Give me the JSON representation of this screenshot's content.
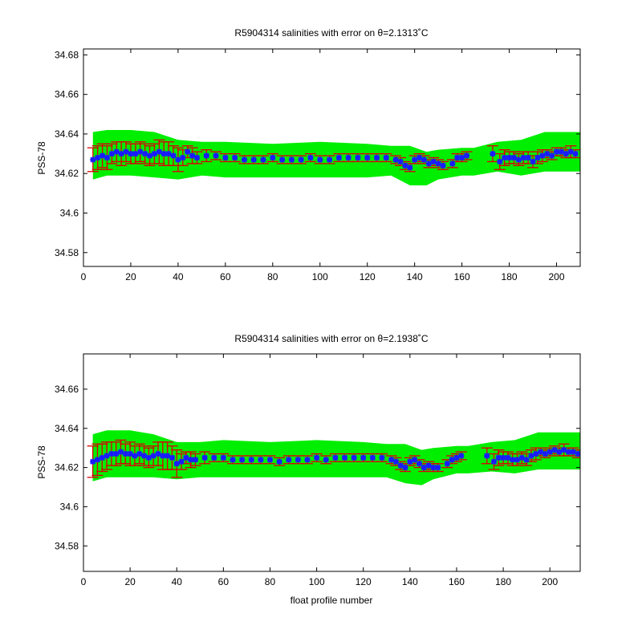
{
  "colors": {
    "band": "#00ee00",
    "errorbar": "#dd0000",
    "marker": "#1a1aff",
    "axes": "#000000"
  },
  "xlabel": "float profile number",
  "chart_data": [
    {
      "type": "scatter",
      "title": "R5904314 salinities with error on θ=2.1313˚C",
      "ylabel": "PSS-78",
      "xlim": [
        0,
        210
      ],
      "ylim": [
        34.573,
        34.683
      ],
      "xticks": [
        0,
        20,
        40,
        60,
        80,
        100,
        120,
        140,
        160,
        180,
        200
      ],
      "yticks": [
        34.58,
        34.6,
        34.62,
        34.64,
        34.66,
        34.68
      ],
      "yticklabels": [
        "34.58",
        "34.6",
        "34.62",
        "34.64",
        "34.66",
        "34.68"
      ],
      "grid": false,
      "series": [
        {
          "role": "error-band",
          "x": [
            4,
            10,
            20,
            30,
            40,
            50,
            60,
            80,
            100,
            120,
            130,
            138,
            145,
            150,
            160,
            165,
            175,
            185,
            195,
            210
          ],
          "upper": [
            34.641,
            34.642,
            34.642,
            34.641,
            34.637,
            34.636,
            34.636,
            34.635,
            34.636,
            34.635,
            34.634,
            34.634,
            34.631,
            34.632,
            34.633,
            34.633,
            34.636,
            34.637,
            34.641,
            34.641
          ],
          "lower": [
            34.617,
            34.619,
            34.619,
            34.618,
            34.617,
            34.619,
            34.618,
            34.618,
            34.618,
            34.618,
            34.619,
            34.614,
            34.614,
            34.617,
            34.619,
            34.619,
            34.621,
            34.619,
            34.621,
            34.621
          ]
        },
        {
          "role": "salinity",
          "x": [
            4,
            6,
            8,
            10,
            12,
            14,
            16,
            18,
            20,
            22,
            24,
            26,
            28,
            30,
            32,
            34,
            36,
            38,
            40,
            42,
            44,
            46,
            48,
            52,
            56,
            60,
            64,
            68,
            72,
            76,
            80,
            84,
            88,
            92,
            96,
            100,
            104,
            108,
            112,
            116,
            120,
            124,
            128,
            132,
            134,
            136,
            138,
            140,
            142,
            144,
            146,
            148,
            150,
            152,
            156,
            158,
            160,
            162,
            173,
            176,
            178,
            180,
            182,
            184,
            186,
            188,
            190,
            192,
            194,
            196,
            198,
            200,
            202,
            204,
            206,
            208
          ],
          "y": [
            34.627,
            34.628,
            34.629,
            34.628,
            34.63,
            34.631,
            34.63,
            34.631,
            34.63,
            34.63,
            34.631,
            34.63,
            34.629,
            34.63,
            34.631,
            34.63,
            34.63,
            34.629,
            34.627,
            34.628,
            34.631,
            34.629,
            34.628,
            34.629,
            34.629,
            34.628,
            34.628,
            34.627,
            34.627,
            34.627,
            34.628,
            34.627,
            34.627,
            34.627,
            34.628,
            34.627,
            34.627,
            34.628,
            34.628,
            34.628,
            34.628,
            34.628,
            34.628,
            34.627,
            34.626,
            34.624,
            34.623,
            34.627,
            34.628,
            34.627,
            34.625,
            34.626,
            34.625,
            34.624,
            34.625,
            34.628,
            34.628,
            34.629,
            34.63,
            34.626,
            34.628,
            34.628,
            34.628,
            34.627,
            34.628,
            34.628,
            34.626,
            34.628,
            34.629,
            34.63,
            34.629,
            34.631,
            34.631,
            34.63,
            34.631,
            34.63
          ],
          "err": [
            0.006,
            0.006,
            0.006,
            0.006,
            0.005,
            0.005,
            0.006,
            0.005,
            0.005,
            0.005,
            0.005,
            0.005,
            0.005,
            0.005,
            0.006,
            0.006,
            0.006,
            0.005,
            0.006,
            0.004,
            0.003,
            0.004,
            0.003,
            0.003,
            0.002,
            0.002,
            0.002,
            0.002,
            0.002,
            0.002,
            0.002,
            0.002,
            0.002,
            0.002,
            0.002,
            0.002,
            0.002,
            0.002,
            0.002,
            0.002,
            0.002,
            0.002,
            0.002,
            0.002,
            0.002,
            0.002,
            0.002,
            0.002,
            0.002,
            0.002,
            0.002,
            0.002,
            0.002,
            0.002,
            0.002,
            0.002,
            0.002,
            0.002,
            0.004,
            0.004,
            0.004,
            0.003,
            0.003,
            0.003,
            0.003,
            0.003,
            0.003,
            0.003,
            0.003,
            0.002,
            0.002,
            0.002,
            0.002,
            0.002,
            0.003,
            0.002
          ]
        }
      ]
    },
    {
      "type": "scatter",
      "title": "R5904314 salinities with error on θ=2.1938˚C",
      "ylabel": "PSS-78",
      "xlabel": "float profile number",
      "xlim": [
        0,
        213
      ],
      "ylim": [
        34.567,
        34.678
      ],
      "xticks": [
        0,
        20,
        40,
        60,
        80,
        100,
        120,
        140,
        160,
        180,
        200
      ],
      "yticks": [
        34.58,
        34.6,
        34.62,
        34.64,
        34.66
      ],
      "yticklabels": [
        "34.58",
        "34.6",
        "34.62",
        "34.64",
        "34.66"
      ],
      "grid": false,
      "series": [
        {
          "role": "error-band",
          "x": [
            4,
            10,
            20,
            30,
            40,
            50,
            60,
            80,
            100,
            120,
            130,
            138,
            145,
            150,
            160,
            165,
            175,
            185,
            195,
            213
          ],
          "upper": [
            34.637,
            34.639,
            34.639,
            34.637,
            34.633,
            34.633,
            34.634,
            34.633,
            34.634,
            34.633,
            34.632,
            34.632,
            34.629,
            34.63,
            34.631,
            34.631,
            34.633,
            34.634,
            34.638,
            34.638
          ],
          "lower": [
            34.613,
            34.615,
            34.615,
            34.615,
            34.614,
            34.615,
            34.615,
            34.615,
            34.615,
            34.615,
            34.615,
            34.612,
            34.611,
            34.614,
            34.617,
            34.617,
            34.618,
            34.617,
            34.619,
            34.619
          ]
        },
        {
          "role": "salinity",
          "x": [
            4,
            6,
            8,
            10,
            12,
            14,
            16,
            18,
            20,
            22,
            24,
            26,
            28,
            30,
            32,
            34,
            36,
            38,
            40,
            42,
            44,
            46,
            48,
            52,
            56,
            60,
            64,
            68,
            72,
            76,
            80,
            84,
            88,
            92,
            96,
            100,
            104,
            108,
            112,
            116,
            120,
            124,
            128,
            132,
            134,
            136,
            138,
            140,
            142,
            144,
            146,
            148,
            150,
            152,
            156,
            158,
            160,
            162,
            173,
            176,
            178,
            180,
            182,
            184,
            186,
            188,
            190,
            192,
            194,
            196,
            198,
            200,
            202,
            204,
            206,
            208,
            210,
            212
          ],
          "y": [
            34.623,
            34.624,
            34.625,
            34.626,
            34.627,
            34.627,
            34.628,
            34.627,
            34.627,
            34.626,
            34.627,
            34.626,
            34.625,
            34.626,
            34.627,
            34.626,
            34.626,
            34.625,
            34.622,
            34.623,
            34.625,
            34.624,
            34.624,
            34.625,
            34.625,
            34.625,
            34.624,
            34.624,
            34.624,
            34.624,
            34.624,
            34.623,
            34.624,
            34.624,
            34.624,
            34.625,
            34.624,
            34.625,
            34.625,
            34.625,
            34.625,
            34.625,
            34.625,
            34.624,
            34.623,
            34.621,
            34.62,
            34.623,
            34.624,
            34.622,
            34.62,
            34.621,
            34.62,
            34.62,
            34.622,
            34.624,
            34.625,
            34.626,
            34.626,
            34.623,
            34.625,
            34.625,
            34.625,
            34.624,
            34.624,
            34.625,
            34.624,
            34.626,
            34.627,
            34.628,
            34.627,
            34.628,
            34.629,
            34.628,
            34.629,
            34.628,
            34.628,
            34.627
          ],
          "err": [
            0.008,
            0.008,
            0.007,
            0.007,
            0.006,
            0.006,
            0.006,
            0.005,
            0.006,
            0.005,
            0.005,
            0.005,
            0.005,
            0.005,
            0.006,
            0.007,
            0.007,
            0.006,
            0.007,
            0.004,
            0.003,
            0.004,
            0.003,
            0.003,
            0.002,
            0.002,
            0.002,
            0.002,
            0.002,
            0.002,
            0.002,
            0.002,
            0.002,
            0.002,
            0.002,
            0.002,
            0.002,
            0.002,
            0.002,
            0.002,
            0.002,
            0.002,
            0.002,
            0.002,
            0.002,
            0.002,
            0.002,
            0.002,
            0.002,
            0.002,
            0.002,
            0.002,
            0.002,
            0.002,
            0.002,
            0.002,
            0.002,
            0.002,
            0.004,
            0.004,
            0.004,
            0.003,
            0.003,
            0.003,
            0.003,
            0.003,
            0.003,
            0.003,
            0.003,
            0.002,
            0.002,
            0.002,
            0.002,
            0.002,
            0.003,
            0.002,
            0.002,
            0.002
          ]
        }
      ]
    }
  ]
}
